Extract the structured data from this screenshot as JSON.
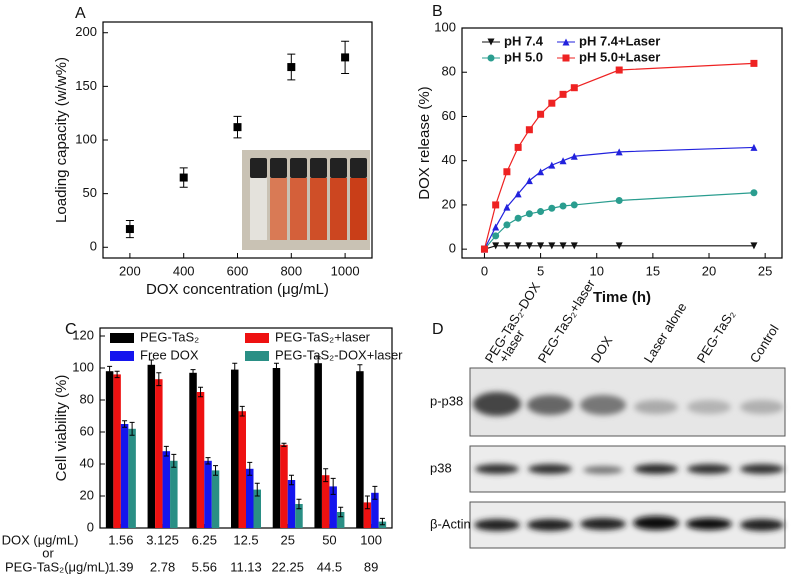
{
  "chart_data": [
    {
      "type": "scatter",
      "label": "A",
      "x_label": "DOX concentration (μg/mL)",
      "y_label": "Loading capacity (w/w%)",
      "x": [
        200,
        400,
        600,
        800,
        1000
      ],
      "values": [
        17,
        65,
        112,
        168,
        177
      ],
      "errors": [
        8,
        9,
        10,
        12,
        15
      ],
      "color": "#000000",
      "marker": "square",
      "xlim": [
        100,
        1100
      ],
      "ylim": [
        -10,
        210
      ],
      "xticks": [
        200,
        400,
        600,
        800,
        1000
      ],
      "yticks": [
        0,
        50,
        100,
        150,
        200
      ]
    },
    {
      "type": "line",
      "label": "B",
      "x_label": "Time (h)",
      "y_label": "DOX release (%)",
      "x": [
        0,
        1,
        2,
        3,
        4,
        5,
        6,
        7,
        8,
        12,
        24
      ],
      "series": [
        {
          "name": "pH 7.4",
          "color": "#111111",
          "marker": "triangle-down",
          "values": [
            0,
            1.5,
            1.5,
            1.5,
            1.5,
            1.5,
            1.5,
            1.5,
            1.5,
            1.5,
            1.5
          ]
        },
        {
          "name": "pH 7.4+Laser",
          "color": "#2222dd",
          "marker": "triangle-up",
          "values": [
            0,
            10,
            19,
            25,
            31,
            35,
            38,
            40,
            42,
            44,
            46
          ]
        },
        {
          "name": "pH 5.0",
          "color": "#2a9d8f",
          "marker": "circle",
          "values": [
            0,
            6,
            11,
            14,
            16,
            17,
            18.5,
            19.5,
            20,
            22,
            25.5
          ]
        },
        {
          "name": "pH 5.0+Laser",
          "color": "#ee2222",
          "marker": "square",
          "values": [
            0,
            20,
            35,
            46,
            54,
            61,
            66,
            70,
            73,
            81,
            84
          ]
        }
      ],
      "xlim": [
        -2,
        26.5
      ],
      "ylim": [
        -4,
        100
      ],
      "xticks": [
        0,
        5,
        10,
        15,
        20,
        25
      ],
      "yticks": [
        0,
        20,
        40,
        60,
        80,
        100
      ],
      "legend": "top"
    },
    {
      "type": "bar",
      "label": "C",
      "y_label": "Cell viability (%)",
      "categories": [
        "1.56",
        "3.125",
        "6.25",
        "12.5",
        "25",
        "50",
        "100"
      ],
      "secondary_categories": [
        "1.39",
        "2.78",
        "5.56",
        "11.13",
        "22.25",
        "44.5",
        "89"
      ],
      "row_labels": [
        "DOX (μg/mL)",
        "or",
        "PEG-TaS₂(μg/mL)"
      ],
      "series": [
        {
          "name": "PEG-TaS₂",
          "color": "#000000",
          "values": [
            98,
            102,
            97,
            99,
            100,
            103,
            98
          ],
          "errors": [
            3,
            3,
            2,
            4,
            3,
            4,
            4
          ]
        },
        {
          "name": "PEG-TaS₂+laser",
          "color": "#ee1111",
          "values": [
            96,
            93,
            85,
            73,
            52,
            33,
            16
          ],
          "errors": [
            2,
            4,
            3,
            3,
            1,
            4,
            4
          ]
        },
        {
          "name": "Free DOX",
          "color": "#1515ee",
          "values": [
            65,
            48,
            42,
            37,
            30,
            26,
            22
          ],
          "errors": [
            2,
            3,
            2,
            4,
            3,
            5,
            4
          ]
        },
        {
          "name": "PEG-TaS₂-DOX+laser",
          "color": "#2a8f85",
          "values": [
            62,
            42,
            36,
            24,
            15,
            10,
            4
          ],
          "errors": [
            4,
            4,
            3,
            4,
            3,
            3,
            2
          ]
        }
      ],
      "ylim": [
        0,
        125
      ],
      "yticks": [
        0,
        20,
        40,
        60,
        80,
        100,
        120
      ],
      "legend": "top"
    }
  ],
  "blot": {
    "label": "D",
    "lanes": [
      [
        "PEG-TaS₂-DOX",
        "+laser"
      ],
      [
        "PEG-TaS₂+laser"
      ],
      [
        "DOX"
      ],
      [
        "Laser alone"
      ],
      [
        "PEG-TaS₂"
      ],
      [
        "Control"
      ]
    ],
    "rows": [
      "p-p38",
      "p38",
      "β-Actin"
    ]
  }
}
